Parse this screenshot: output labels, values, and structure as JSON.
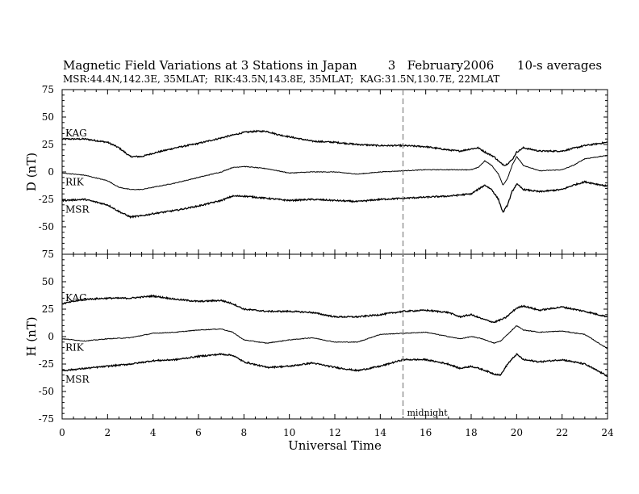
{
  "header": {
    "title_line": "Magnetic Field Variations at 3 Stations in Japan        3   February2006      10-s averages",
    "subtitle_line": "MSR:44.4N,142.3E, 35MLAT;  RIK:43.5N,143.8E, 35MLAT;  KAG:31.5N,130.7E, 22MLAT"
  },
  "chart_data": {
    "type": "line",
    "title": "Magnetic Field Variations at 3 Stations in Japan",
    "date": "3 February2006",
    "note": "10-s averages",
    "xlabel": "Universal Time",
    "xlim": [
      0,
      24
    ],
    "x_ticks": [
      0,
      2,
      4,
      6,
      8,
      10,
      12,
      14,
      16,
      18,
      20,
      22,
      24
    ],
    "x_minor_step": 0.5,
    "annotation": {
      "text": "midnight",
      "x": 15,
      "style": "dashed vertical line"
    },
    "panels": [
      {
        "ylabel": "D (nT)",
        "ylim": [
          -75,
          75
        ],
        "y_ticks": [
          -75,
          -50,
          -25,
          0,
          25,
          50,
          75
        ],
        "series": [
          {
            "name": "KAG",
            "x": [
              0,
              1,
              2,
              2.5,
              3,
              3.5,
              4,
              5,
              6,
              7,
              8,
              8.5,
              9,
              9.5,
              10,
              11,
              12,
              13,
              14,
              15,
              16,
              17,
              17.5,
              18,
              18.3,
              18.7,
              19,
              19.3,
              19.5,
              19.8,
              20,
              20.3,
              21,
              22,
              23,
              24
            ],
            "y": [
              30,
              30,
              27,
              22,
              14,
              14,
              17,
              22,
              26,
              31,
              36,
              37,
              37,
              34,
              32,
              28,
              27,
              25,
              24,
              24,
              23,
              20,
              19,
              21,
              22,
              17,
              14,
              8,
              6,
              11,
              18,
              22,
              19,
              19,
              24,
              27
            ]
          },
          {
            "name": "RIK",
            "x": [
              0,
              1,
              2,
              2.5,
              3,
              3.5,
              4,
              5,
              6,
              7,
              7.5,
              8,
              9,
              10,
              11,
              12,
              13,
              14,
              15,
              16,
              17,
              18,
              18.3,
              18.6,
              18.9,
              19.2,
              19.4,
              19.6,
              19.8,
              20,
              20.3,
              21,
              22,
              22.5,
              23,
              24
            ],
            "y": [
              -1,
              -3,
              -8,
              -14,
              -16,
              -16,
              -14,
              -10,
              -5,
              0,
              4,
              5,
              3,
              -1,
              0,
              0,
              -2,
              0,
              1,
              2,
              2,
              2,
              4,
              10,
              6,
              -2,
              -12,
              -6,
              6,
              14,
              6,
              1,
              2,
              6,
              12,
              15
            ]
          },
          {
            "name": "MSR",
            "x": [
              0,
              1,
              2,
              2.5,
              3,
              3.5,
              4,
              5,
              6,
              7,
              7.5,
              8,
              9,
              10,
              11,
              12,
              13,
              14,
              15,
              16,
              17,
              18,
              18.3,
              18.6,
              18.9,
              19.2,
              19.4,
              19.6,
              19.8,
              20,
              20.3,
              21,
              22,
              22.5,
              23,
              24
            ],
            "y": [
              -26,
              -25,
              -30,
              -36,
              -41,
              -40,
              -38,
              -35,
              -31,
              -26,
              -22,
              -22,
              -24,
              -26,
              -25,
              -26,
              -27,
              -25,
              -24,
              -23,
              -22,
              -20,
              -16,
              -12,
              -16,
              -25,
              -37,
              -30,
              -18,
              -11,
              -16,
              -18,
              -16,
              -12,
              -9,
              -13
            ]
          }
        ]
      },
      {
        "ylabel": "H (nT)",
        "ylim": [
          -75,
          75
        ],
        "y_ticks": [
          -75,
          -50,
          -25,
          0,
          25,
          50,
          75
        ],
        "series": [
          {
            "name": "KAG",
            "x": [
              0,
              1,
              2,
              3,
              4,
              5,
              6,
              7,
              7.5,
              8,
              9,
              10,
              11,
              12,
              13,
              14,
              15,
              16,
              17,
              17.5,
              18,
              18.5,
              19,
              19.5,
              20,
              20.3,
              21,
              22,
              23,
              24
            ],
            "y": [
              30,
              34,
              35,
              35,
              37,
              34,
              32,
              33,
              30,
              25,
              23,
              23,
              22,
              18,
              18,
              20,
              23,
              24,
              22,
              18,
              20,
              16,
              13,
              17,
              26,
              28,
              24,
              27,
              23,
              18
            ]
          },
          {
            "name": "RIK",
            "x": [
              0,
              1,
              2,
              3,
              4,
              5,
              6,
              7,
              7.5,
              8,
              9,
              10,
              11,
              12,
              13,
              14,
              15,
              16,
              17,
              17.5,
              18,
              18.5,
              19,
              19.3,
              19.6,
              20,
              20.3,
              21,
              22,
              23,
              24
            ],
            "y": [
              -2,
              -4,
              -2,
              -1,
              3,
              4,
              6,
              7,
              4,
              -3,
              -6,
              -3,
              -1,
              -5,
              -5,
              2,
              3,
              4,
              0,
              -2,
              0,
              -2,
              -6,
              -4,
              2,
              10,
              6,
              4,
              5,
              2,
              -11
            ]
          },
          {
            "name": "MSR",
            "x": [
              0,
              1,
              2,
              3,
              4,
              5,
              6,
              7,
              7.5,
              8,
              9,
              10,
              11,
              12,
              13,
              14,
              15,
              16,
              17,
              17.5,
              18,
              18.5,
              19,
              19.3,
              19.6,
              20,
              20.3,
              21,
              22,
              23,
              24
            ],
            "y": [
              -31,
              -29,
              -27,
              -25,
              -22,
              -21,
              -18,
              -16,
              -17,
              -23,
              -28,
              -27,
              -24,
              -28,
              -31,
              -27,
              -21,
              -21,
              -25,
              -29,
              -27,
              -30,
              -34,
              -35,
              -25,
              -16,
              -21,
              -23,
              -21,
              -25,
              -36
            ]
          }
        ]
      }
    ]
  }
}
